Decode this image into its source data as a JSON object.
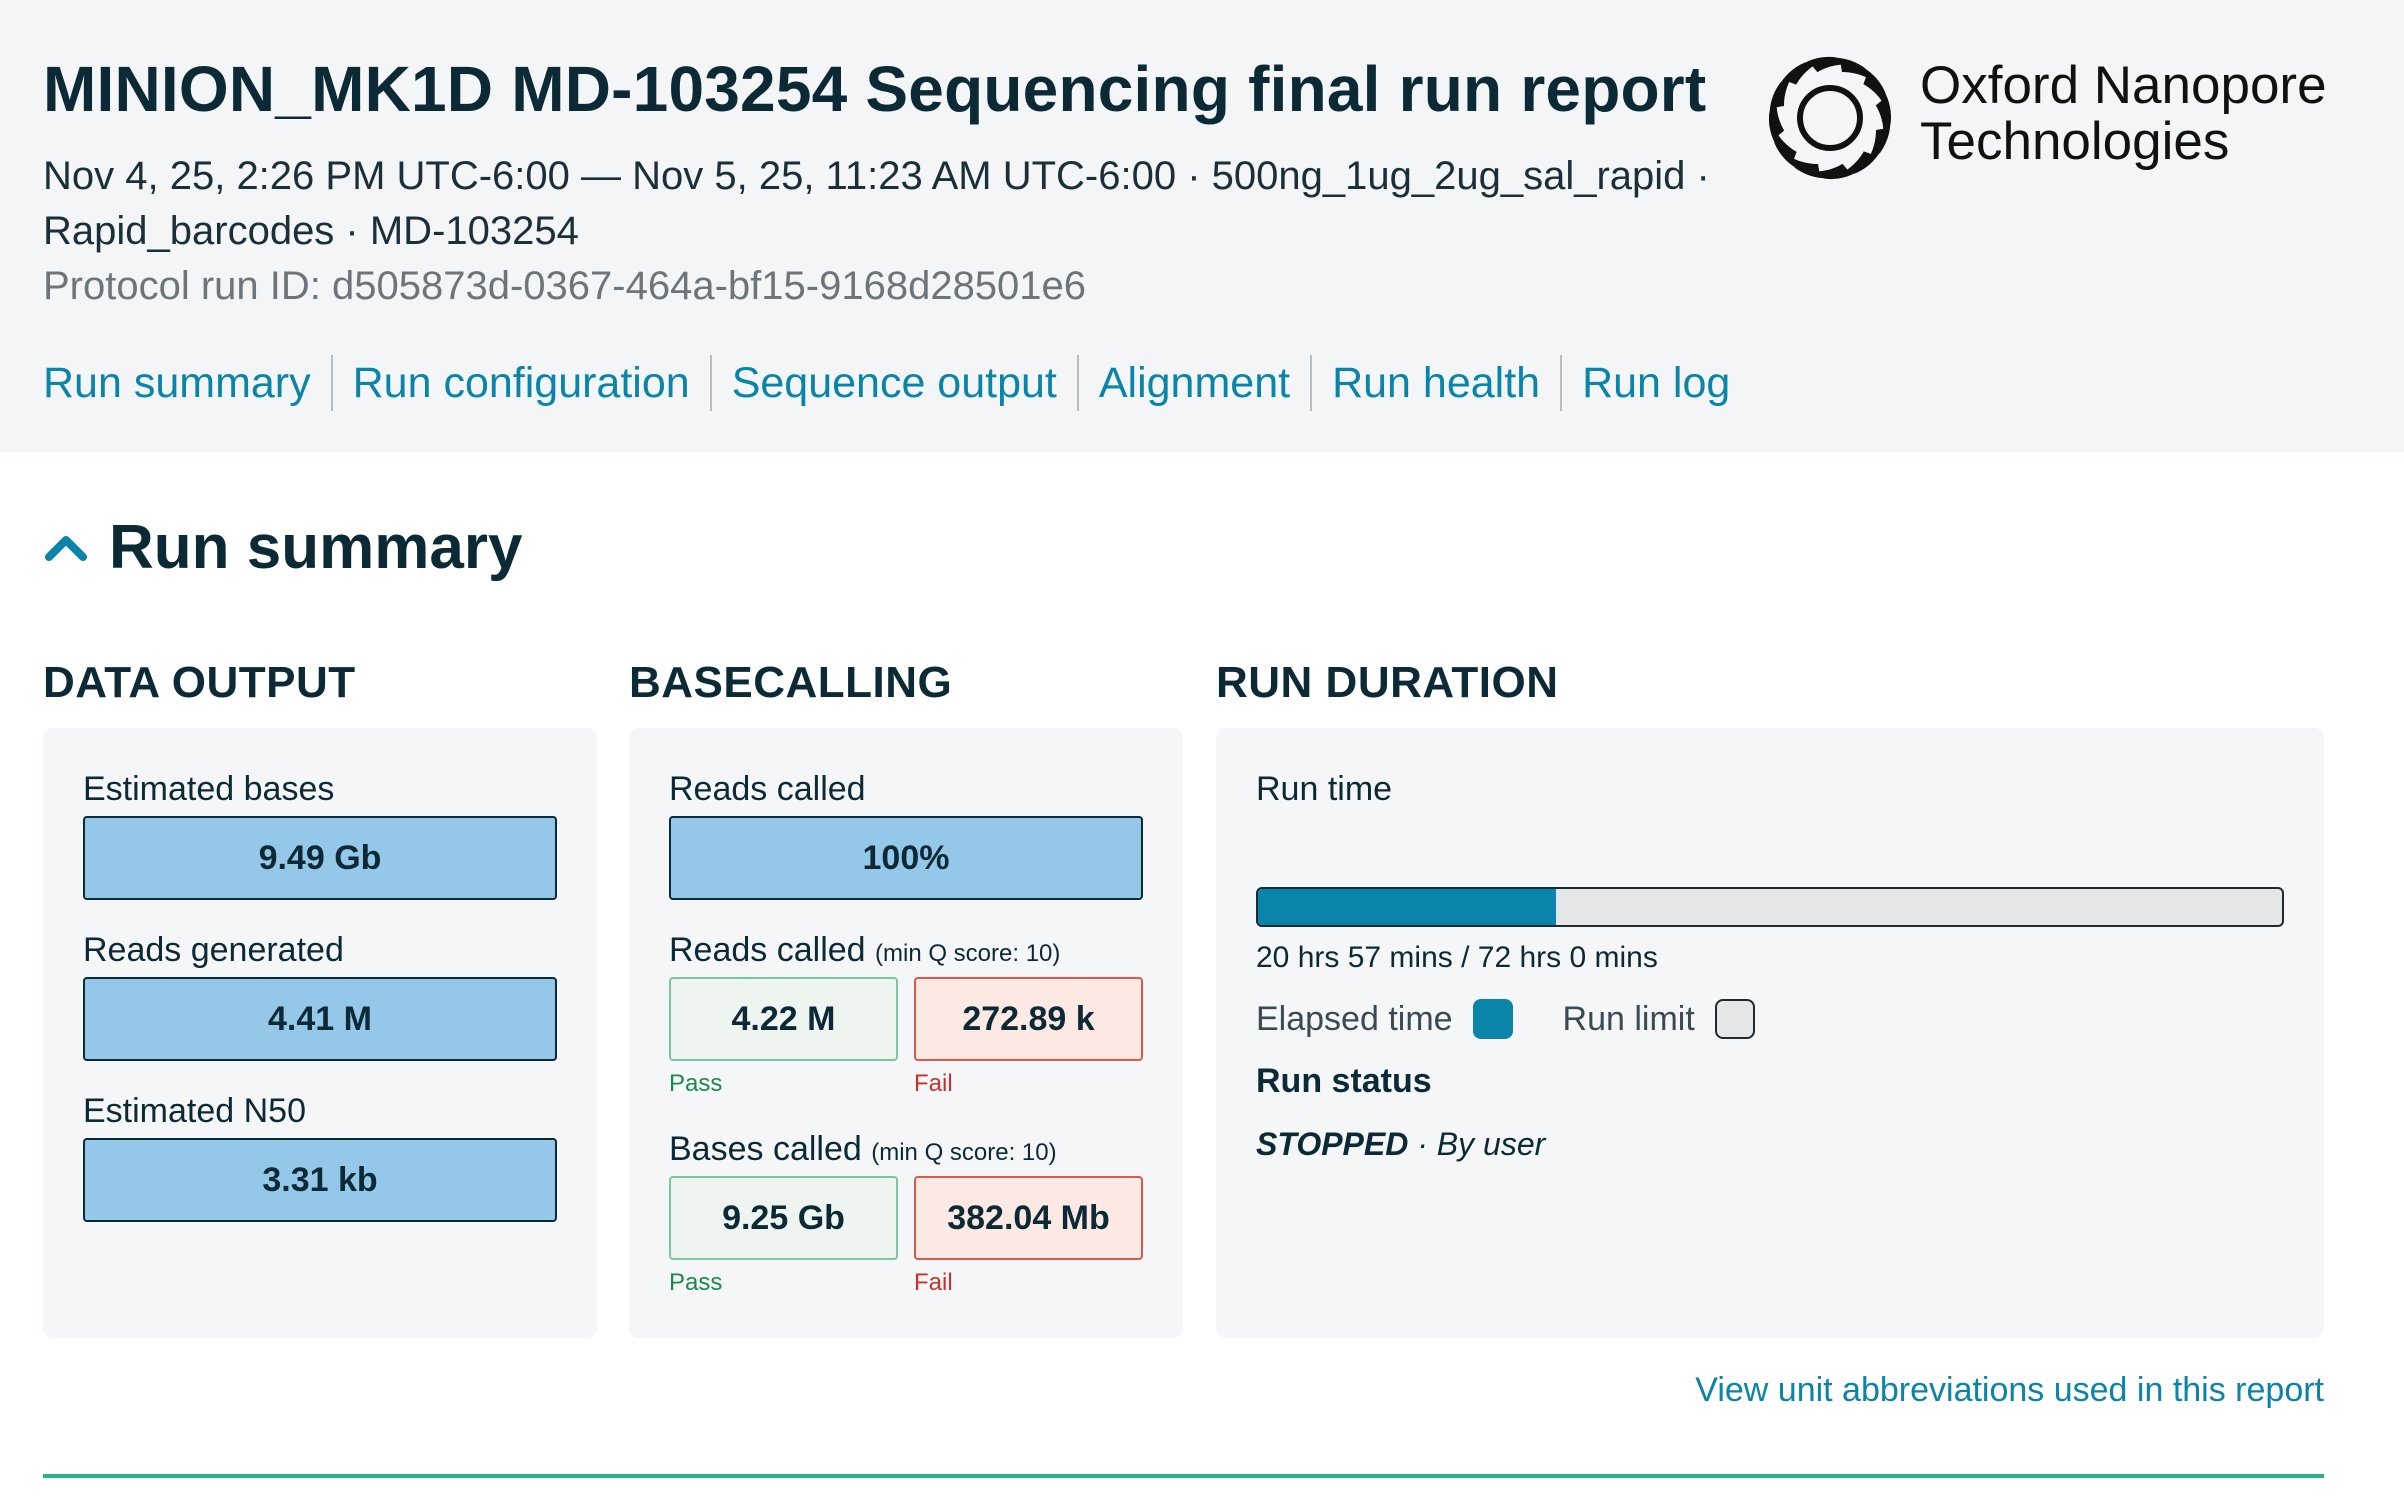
{
  "header": {
    "title": "MINION_MK1D MD-103254 Sequencing final run report",
    "subline1": "Nov 4, 25, 2:26 PM UTC-6:00 — Nov 5, 25, 11:23 AM UTC-6:00 · 500ng_1ug_2ug_sal_rapid ·",
    "subline2": "Rapid_barcodes · MD-103254",
    "protocol_label": "Protocol run ID: ",
    "protocol_id": "d505873d-0367-464a-bf15-9168d28501e6",
    "logo_line1": "Oxford Nanopore",
    "logo_line2": "Technologies"
  },
  "nav": [
    "Run summary",
    "Run configuration",
    "Sequence output",
    "Alignment",
    "Run health",
    "Run log"
  ],
  "section": {
    "title": "Run summary"
  },
  "data_output": {
    "title": "DATA OUTPUT",
    "estimated_bases_label": "Estimated bases",
    "estimated_bases_value": "9.49 Gb",
    "reads_generated_label": "Reads generated",
    "reads_generated_value": "4.41 M",
    "n50_label": "Estimated N50",
    "n50_value": "3.31 kb"
  },
  "basecalling": {
    "title": "BASECALLING",
    "reads_called_label": "Reads called",
    "reads_called_value": "100%",
    "reads_q_label": "Reads called",
    "reads_q_note": "(min Q score: 10)",
    "reads_pass": "4.22 M",
    "reads_fail": "272.89 k",
    "bases_q_label": "Bases called",
    "bases_q_note": "(min Q score: 10)",
    "bases_pass": "9.25 Gb",
    "bases_fail": "382.04 Mb",
    "pass_label": "Pass",
    "fail_label": "Fail"
  },
  "run_duration": {
    "title": "RUN DURATION",
    "run_time_label": "Run time",
    "elapsed_fraction": 0.291,
    "duration_text": "20 hrs 57 mins / 72 hrs 0 mins",
    "legend_elapsed": "Elapsed time",
    "legend_limit": "Run limit",
    "status_label": "Run status",
    "status_value": "STOPPED",
    "status_reason": " · By user"
  },
  "footer": {
    "abbr_link": "View unit abbreviations used in this report"
  },
  "colors": {
    "accent": "#0a84a8",
    "value_fill": "#94c7e8",
    "pass": "#1c8a4a",
    "fail": "#c9322c",
    "rule": "#2bb08a"
  },
  "icons": {
    "section_toggle": "chevron-up-icon",
    "logo": "oxford-nanopore-logo-icon"
  }
}
